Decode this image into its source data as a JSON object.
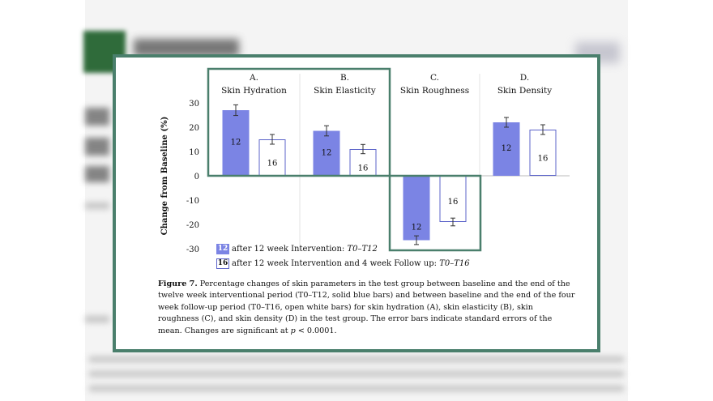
{
  "chart_data": {
    "type": "bar",
    "ylabel": "Change from Baseline (%)",
    "ylim": [
      -30,
      30
    ],
    "yticks": [
      30,
      20,
      10,
      0,
      -10,
      -20,
      -30
    ],
    "panels": [
      {
        "letter": "A.",
        "title": "Skin Hydration"
      },
      {
        "letter": "B.",
        "title": "Skin Elasticity"
      },
      {
        "letter": "C.",
        "title": "Skin Roughness"
      },
      {
        "letter": "D.",
        "title": "Skin Density"
      }
    ],
    "categories": [
      "Skin Hydration",
      "Skin Elasticity",
      "Skin Roughness",
      "Skin Density"
    ],
    "series": [
      {
        "name": "after 12 week Intervention: T0–T12",
        "label": "12",
        "style": "solid",
        "values": [
          27,
          18.5,
          -26.5,
          22
        ],
        "errors": [
          2.2,
          2.1,
          1.8,
          2.0
        ]
      },
      {
        "name": "after 12 week Intervention and 4 week Follow up: T0–T16",
        "label": "16",
        "style": "open",
        "values": [
          15,
          11,
          -19,
          19
        ],
        "errors": [
          2.0,
          1.9,
          1.6,
          2.0
        ]
      }
    ],
    "colors": {
      "solid": "#7b84e4",
      "open_border": "#5b63c9",
      "highlight_box": "#4a7f6c"
    }
  },
  "legend": [
    {
      "swatch": "12",
      "text": "after 12 week Intervention: ",
      "italic": "T0–T12"
    },
    {
      "swatch": "16",
      "text": "after 12 week Intervention and 4 week Follow up: ",
      "italic": "T0–T16"
    }
  ],
  "caption": {
    "label": "Figure 7.",
    "text": " Percentage changes of skin parameters in the test group between baseline and the end of the twelve week interventional period (T0–T12, solid blue bars) and between baseline and the end of the four week follow-up period (T0–T16, open white bars) for skin hydration (A), skin elasticity (B), skin roughness (C), and skin density (D) in the test group. The error bars indicate standard errors of the mean. Changes are significant at ",
    "p_text": "p",
    "tail": " < 0.0001."
  }
}
